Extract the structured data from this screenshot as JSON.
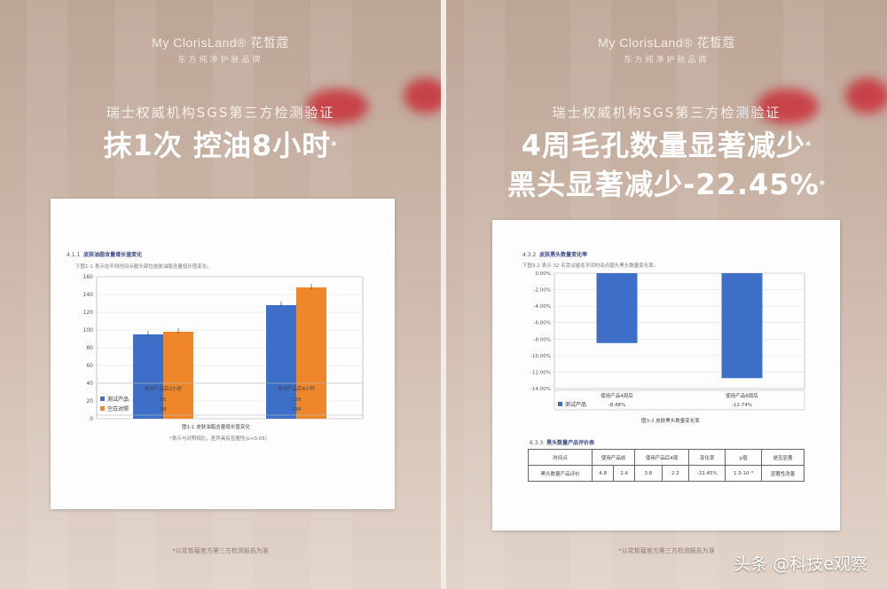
{
  "left": {
    "brand": {
      "name": "My ClorisLand® 花皙蔻",
      "sub": "东方纯净护肤品牌"
    },
    "caption": "瑞士权威机构SGS第三方检测验证",
    "headline": "抹1次 控油8小时",
    "asterisk": "*",
    "doc": {
      "section_no": "4.1.1",
      "section_title": "皮肤油脂含量增长值变化",
      "intro": "下图1-1 表示在不同时间点额头部位皮肤油脂含量增长值变化。",
      "figure_caption": "图1-1 皮肤油脂含量增长值变化",
      "figure_note": "*表示与对照相比，差异具有显著性(p<0.05)"
    },
    "footnote": "*以花皙蔻官方第三方检测报告为准",
    "chart_data": {
      "type": "bar",
      "categories": [
        "使用产品后2小时",
        "使用产品后8小时"
      ],
      "ylim": [
        0,
        160
      ],
      "yticks": [
        0,
        20,
        40,
        60,
        80,
        100,
        120,
        140,
        160
      ],
      "series": [
        {
          "name": "测试产品",
          "values": [
            95,
            128
          ],
          "color": "#3d6fc9"
        },
        {
          "name": "空白对照",
          "values": [
            98,
            148
          ],
          "color": "#f0862a"
        }
      ]
    }
  },
  "right": {
    "brand": {
      "name": "My ClorisLand® 花皙蔻",
      "sub": "东方纯净护肤品牌"
    },
    "caption": "瑞士权威机构SGS第三方检测验证",
    "headline_line1": "4周毛孔数量显著减少",
    "headline_line2": "黑头显著减少-22.45%",
    "asterisk": "*",
    "doc": {
      "section_no": "4.3.2",
      "section_title": "皮肤黑头数量变化率",
      "intro": "下图3-2 表示 32 名受试者在不同时间点额头黑头数量变化率。",
      "figure_caption": "图3-2 皮肤黑头数量变化率",
      "section2_no": "6.3.3",
      "section2_title": "黑头数量产品评价表",
      "table": {
        "r1": [
          "时间点",
          "使用产品前",
          "使用产品后4周",
          "变化率",
          "p值",
          "是否显著"
        ],
        "r2": [
          "黑头数量产品评价",
          "4.8",
          "2.4",
          "3.8",
          "2.2",
          "-22.45%",
          "1.3·10⁻⁵",
          "显著性改善"
        ]
      }
    },
    "footnote": "*以花皙蔻官方第三方检测报告为准",
    "chart_data": {
      "type": "bar",
      "categories": [
        "使用产品4周后",
        "使用产品8周后"
      ],
      "ylim": [
        -14,
        0
      ],
      "yticks": [
        "0.00%",
        "-2.00%",
        "-4.00%",
        "-6.00%",
        "-8.00%",
        "-10.00%",
        "-12.00%",
        "-14.00%"
      ],
      "series": [
        {
          "name": "测试产品",
          "values": [
            -8.48,
            -12.74
          ],
          "color": "#3d6fc9"
        }
      ],
      "table_values": [
        "-8.48%",
        "-12.74%"
      ]
    }
  },
  "watermark": "头条 @科技e观察",
  "colors": {
    "accent_blue": "#3d6fc9",
    "accent_orange": "#f0862a",
    "background": "#c7b1a3"
  }
}
